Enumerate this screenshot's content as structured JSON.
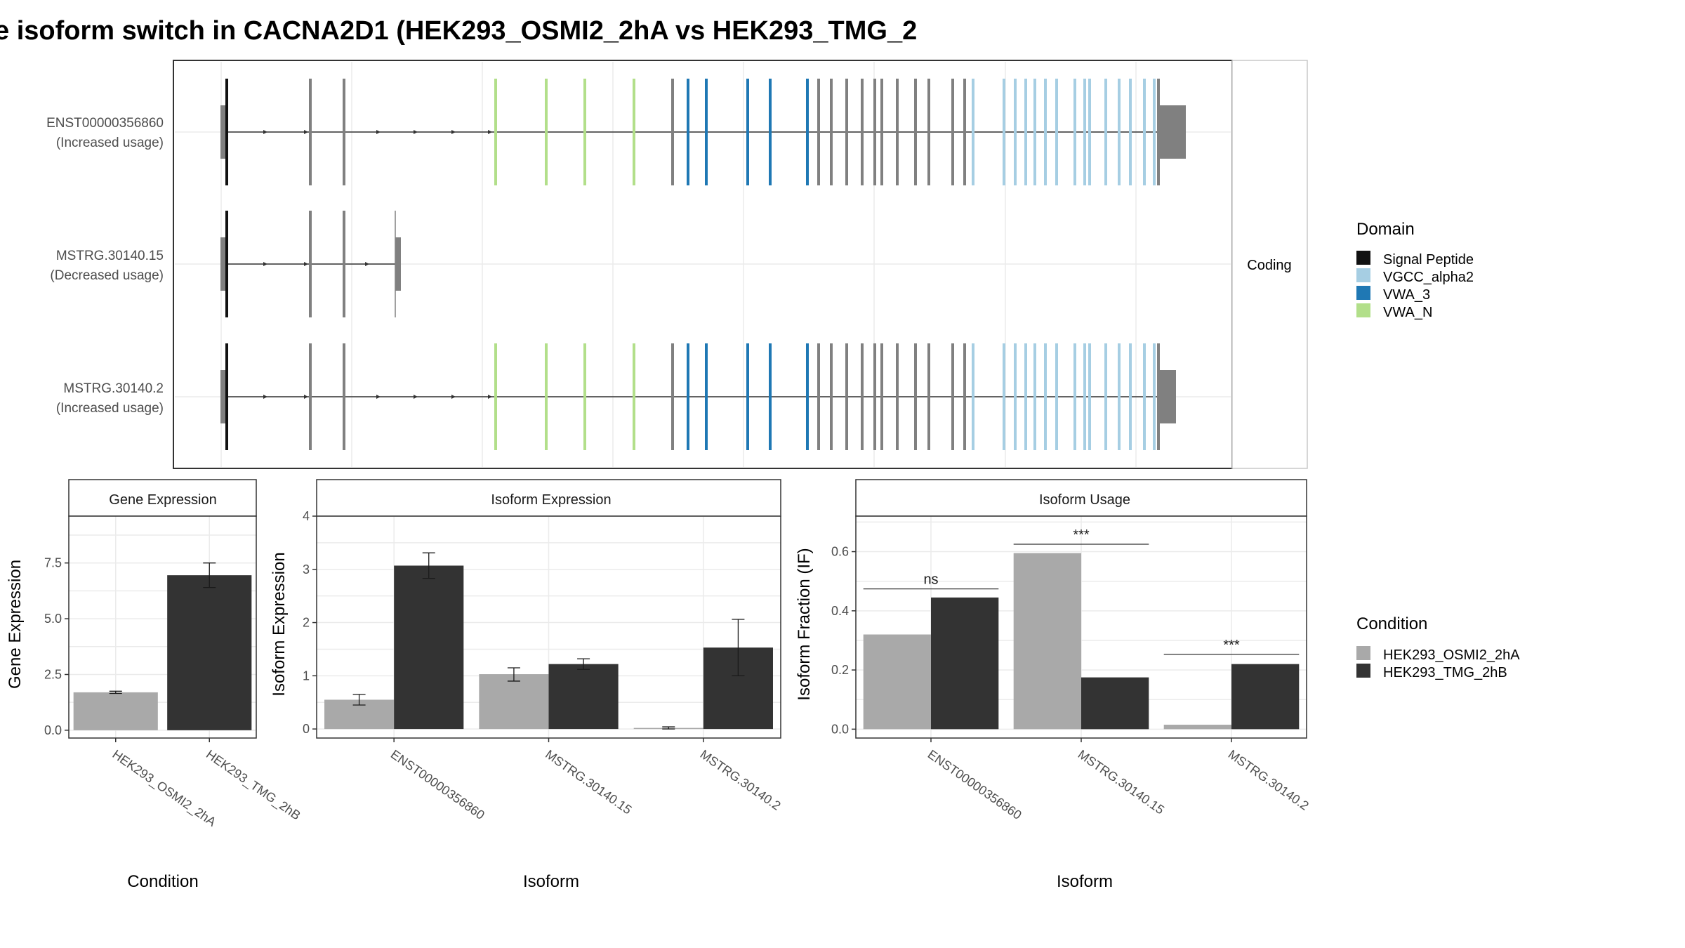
{
  "title": "e isoform switch in CACNA2D1 (HEK293_OSMI2_2hA vs HEK293_TMG_2",
  "colors": {
    "cond_a": "#a9a9a9",
    "cond_b": "#333333",
    "signal_peptide": "#111111",
    "vgcc_alpha2": "#a6cee3",
    "vwa_3": "#1f78b4",
    "vwa_n": "#b2df8a",
    "exon": "#808080"
  },
  "chart_data": [
    {
      "type": "gene-structure",
      "facet_label": "Coding",
      "transcripts": [
        {
          "id": "ENST00000356860",
          "usage": "(Increased usage)",
          "isoform_type": "full"
        },
        {
          "id": "MSTRG.30140.15",
          "usage": "(Decreased usage)",
          "isoform_type": "short"
        },
        {
          "id": "MSTRG.30140.2",
          "usage": "(Increased usage)",
          "isoform_type": "full"
        }
      ],
      "legend": {
        "title": "Domain",
        "entries": [
          {
            "name": "Signal Peptide",
            "color_key": "signal_peptide"
          },
          {
            "name": "VGCC_alpha2",
            "color_key": "vgcc_alpha2"
          },
          {
            "name": "VWA_3",
            "color_key": "vwa_3"
          },
          {
            "name": "VWA_N",
            "color_key": "vwa_n"
          }
        ]
      }
    },
    {
      "type": "bar",
      "strip": "Gene Expression",
      "xlabel": "Condition",
      "ylabel": "Gene Expression",
      "categories": [
        "HEK293_OSMI2_2hA",
        "HEK293_TMG_2hB"
      ],
      "values": [
        1.7,
        6.95
      ],
      "errors": [
        [
          1.65,
          1.75
        ],
        [
          6.4,
          7.5
        ]
      ],
      "ylim": [
        -0.35,
        9.6
      ],
      "yticks": [
        0.0,
        2.5,
        5.0,
        7.5
      ],
      "ytick_labels": [
        "0.0",
        "2.5",
        "5.0",
        "7.5"
      ]
    },
    {
      "type": "bar",
      "strip": "Isoform Expression",
      "xlabel": "Isoform",
      "ylabel": "Isoform Expression",
      "categories": [
        "ENST00000356860",
        "MSTRG.30140.15",
        "MSTRG.30140.2"
      ],
      "series": [
        {
          "values": [
            0.55,
            1.03,
            0.02
          ],
          "errors": [
            [
              0.45,
              0.65
            ],
            [
              0.9,
              1.15
            ],
            [
              0.0,
              0.04
            ]
          ]
        },
        {
          "values": [
            3.07,
            1.22,
            1.53
          ],
          "errors": [
            [
              2.83,
              3.31
            ],
            [
              1.12,
              1.32
            ],
            [
              1.0,
              2.06
            ]
          ]
        }
      ],
      "ylim": [
        -0.17,
        4.0
      ],
      "yticks": [
        0,
        1,
        2,
        3,
        4
      ],
      "ytick_labels": [
        "0",
        "1",
        "2",
        "3",
        "4"
      ]
    },
    {
      "type": "bar",
      "strip": "Isoform Usage",
      "xlabel": "Isoform",
      "ylabel": "Isoform Fraction (IF)",
      "categories": [
        "ENST00000356860",
        "MSTRG.30140.15",
        "MSTRG.30140.2"
      ],
      "series": [
        {
          "values": [
            0.32,
            0.595,
            0.015
          ]
        },
        {
          "values": [
            0.445,
            0.175,
            0.22
          ]
        }
      ],
      "significance": [
        {
          "label": "ns",
          "y": 0.474
        },
        {
          "label": "***",
          "y": 0.625
        },
        {
          "label": "***",
          "y": 0.253
        }
      ],
      "ylim": [
        -0.03,
        0.72
      ],
      "yticks": [
        0.0,
        0.2,
        0.4,
        0.6
      ],
      "ytick_labels": [
        "0.0",
        "0.2",
        "0.4",
        "0.6"
      ]
    }
  ],
  "condition_legend": {
    "title": "Condition",
    "entries": [
      {
        "name": "HEK293_OSMI2_2hA",
        "color_key": "cond_a"
      },
      {
        "name": "HEK293_TMG_2hB",
        "color_key": "cond_b"
      }
    ]
  }
}
